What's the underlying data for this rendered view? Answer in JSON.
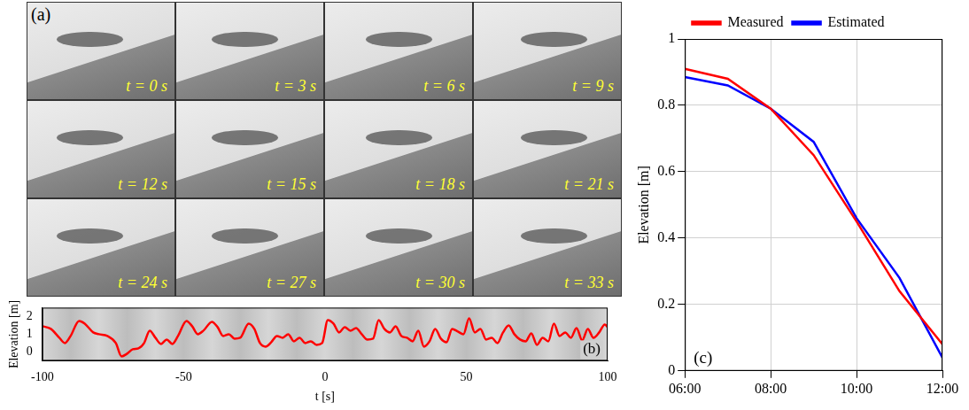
{
  "image_panel": {
    "label": "(a)",
    "frames": [
      "t = 0 s",
      "t = 3 s",
      "t = 6 s",
      "t = 9 s",
      "t = 12 s",
      "t = 15 s",
      "t = 18 s",
      "t = 21 s",
      "t = 24 s",
      "t = 27 s",
      "t = 30 s",
      "t = 33 s"
    ]
  },
  "chart_data": [
    {
      "type": "line",
      "label": "(b)",
      "xlabel": "t [s]",
      "ylabel": "Elevation [m]",
      "color": "#ff0000",
      "grid": false,
      "x": [
        -100,
        -97,
        -94,
        -92,
        -90,
        -87,
        -85,
        -82,
        -80,
        -77,
        -74,
        -72,
        -70,
        -68,
        -66,
        -64,
        -62,
        -60,
        -58,
        -56,
        -54,
        -52,
        -49,
        -47,
        -45,
        -43,
        -40,
        -38,
        -36,
        -34,
        -32,
        -30,
        -27,
        -25,
        -23,
        -21,
        -19,
        -17,
        -15,
        -13,
        -11,
        -9,
        -7,
        -5,
        -3,
        -1,
        1,
        3,
        5,
        7,
        9,
        11,
        13,
        15,
        17,
        19,
        21,
        23,
        25,
        27,
        29,
        31,
        33,
        35,
        37,
        39,
        41,
        43,
        45,
        47,
        49,
        51,
        53,
        55,
        57,
        59,
        61,
        63,
        65,
        67,
        69,
        71,
        73,
        75,
        77,
        79,
        81,
        83,
        85,
        87,
        89,
        91,
        93,
        95,
        97,
        99,
        100
      ],
      "values": [
        1.45,
        1.3,
        0.8,
        0.5,
        0.9,
        1.75,
        1.6,
        1.1,
        1.0,
        0.9,
        0.5,
        -0.25,
        -0.1,
        0.15,
        0.2,
        0.5,
        1.2,
        0.8,
        0.45,
        0.7,
        0.45,
        0.9,
        1.75,
        1.45,
        1.0,
        1.2,
        1.7,
        1.4,
        0.9,
        1.0,
        0.75,
        0.8,
        1.6,
        1.3,
        0.5,
        0.3,
        0.55,
        0.9,
        0.8,
        1.0,
        0.6,
        0.8,
        0.5,
        0.6,
        0.4,
        0.5,
        1.8,
        1.6,
        1.1,
        1.4,
        1.2,
        1.35,
        1.0,
        0.7,
        0.75,
        1.8,
        1.3,
        1.1,
        1.45,
        0.9,
        0.8,
        0.6,
        1.2,
        0.3,
        0.6,
        1.3,
        0.75,
        0.55,
        1.3,
        1.15,
        1.0,
        1.9,
        1.1,
        1.3,
        0.7,
        0.8,
        0.5,
        1.1,
        1.5,
        1.0,
        0.7,
        0.6,
        1.05,
        0.4,
        0.8,
        0.6,
        1.6,
        0.9,
        1.1,
        0.8,
        1.35,
        0.65,
        1.3,
        0.8,
        1.1,
        1.55,
        1.4
      ],
      "xlim": [
        -100,
        100
      ],
      "xticks": [
        -100,
        -50,
        0,
        50,
        100
      ],
      "ylim": [
        -0.5,
        2.5
      ],
      "yticks": [
        0,
        1,
        2
      ]
    },
    {
      "type": "line",
      "label": "(c)",
      "ylabel": "Elevation [m]",
      "grid": true,
      "legend": "top",
      "x": [
        6,
        7,
        8,
        9,
        10,
        11,
        12
      ],
      "series": [
        {
          "name": "Measured",
          "color": "#ff0000",
          "values": [
            0.91,
            0.88,
            0.79,
            0.65,
            0.45,
            0.24,
            0.08
          ]
        },
        {
          "name": "Estimated",
          "color": "#0000ff",
          "values": [
            0.885,
            0.86,
            0.79,
            0.69,
            0.46,
            0.28,
            0.04
          ]
        }
      ],
      "xlim": [
        6,
        12
      ],
      "xticks": [
        {
          "value": 6,
          "label": "06:00"
        },
        {
          "value": 8,
          "label": "08:00"
        },
        {
          "value": 10,
          "label": "10:00"
        },
        {
          "value": 12,
          "label": "12:00"
        }
      ],
      "ylim": [
        0,
        1
      ],
      "yticks": [
        0,
        0.2,
        0.4,
        0.6,
        0.8,
        1
      ]
    }
  ]
}
